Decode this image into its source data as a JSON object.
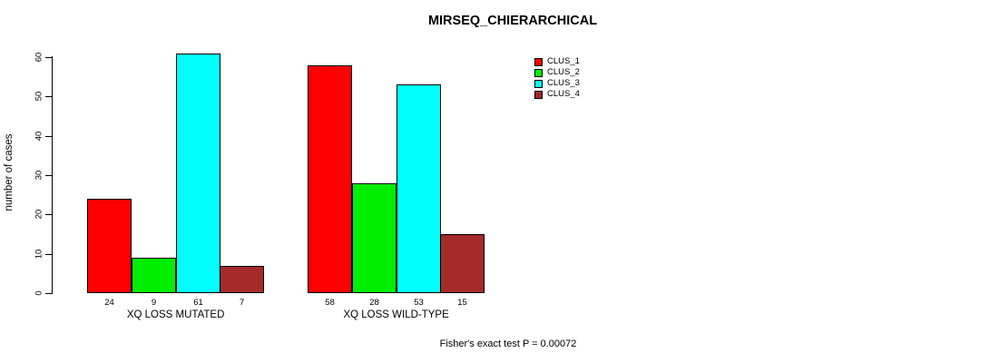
{
  "title": "MIRSEQ_CHIERARCHICAL",
  "footer_annotation": "Fisher's exact test P = 0.00072",
  "chart_data": {
    "type": "bar",
    "title": "MIRSEQ_CHIERARCHICAL",
    "xlabel": "",
    "ylabel": "number of cases",
    "ylim": [
      0,
      65
    ],
    "yticks": [
      0,
      10,
      20,
      30,
      40,
      50,
      60
    ],
    "grid": false,
    "legend_position": "top-right",
    "categories": [
      "XQ LOSS MUTATED",
      "XQ LOSS WILD-TYPE"
    ],
    "series": [
      {
        "name": "CLUS_1",
        "color": "#FF0000",
        "values": [
          24,
          58
        ]
      },
      {
        "name": "CLUS_2",
        "color": "#00EE00",
        "values": [
          9,
          28
        ]
      },
      {
        "name": "CLUS_3",
        "color": "#00FFFF",
        "values": [
          61,
          53
        ]
      },
      {
        "name": "CLUS_4",
        "color": "#A52A2A",
        "values": [
          7,
          15
        ]
      }
    ],
    "bar_value_labels": [
      [
        24,
        9,
        61,
        7
      ],
      [
        58,
        28,
        53,
        15
      ]
    ],
    "annotation": "Fisher's exact test P = 0.00072",
    "axis_color": "#000000",
    "background_color": "#FFFFFF"
  }
}
